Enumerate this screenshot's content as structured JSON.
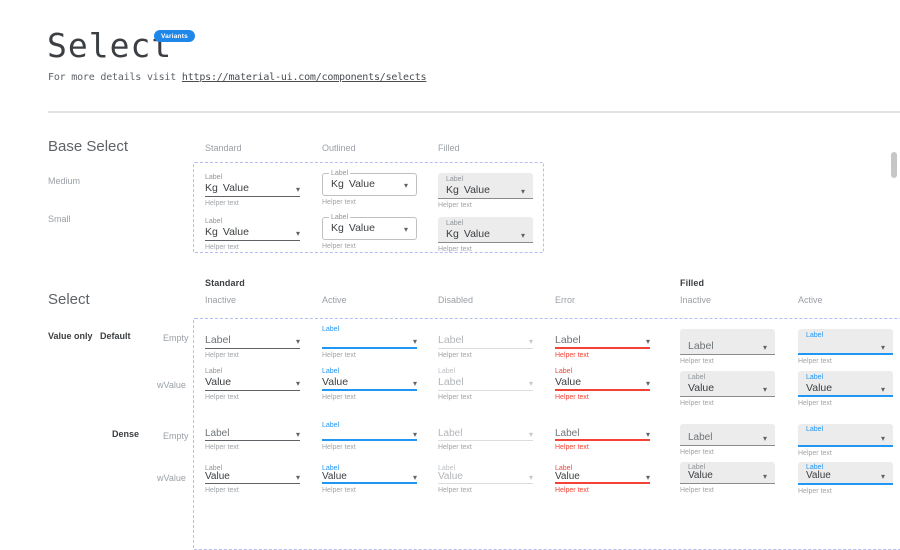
{
  "header": {
    "title": "Select",
    "badge": "Variants",
    "subtitle_prefix": "For more details visit ",
    "link_text": "https://material-ui.com/components/selects"
  },
  "icons": {
    "dropdown": "▾"
  },
  "colors": {
    "primary": "#2196f3",
    "error": "#f44336",
    "badge": "#1f87e8",
    "filled_fill": "#ececec",
    "dashed_border": "#b7bdf2"
  },
  "base_select": {
    "heading": "Base Select",
    "column_headers": [
      "Standard",
      "Outlined",
      "Filled"
    ],
    "row_headers": [
      "Medium",
      "Small"
    ],
    "cell": {
      "label": "Label",
      "adornment": "Kg",
      "value": "Value",
      "helper": "Helper text"
    }
  },
  "select_matrix": {
    "heading": "Select",
    "group_headers": [
      "Standard",
      "Filled"
    ],
    "state_headers": [
      "Inactive",
      "Active",
      "Disabled",
      "Error",
      "Inactive",
      "Active"
    ],
    "row_labels": {
      "group": "Value only",
      "size_default": "Default",
      "size_dense": "Dense",
      "empty": "Empty",
      "with_value": "wValue"
    },
    "helper": "Helper text",
    "columns": [
      {
        "kind": "standard",
        "mode": "inactive"
      },
      {
        "kind": "standard",
        "mode": "active"
      },
      {
        "kind": "standard",
        "mode": "disabled"
      },
      {
        "kind": "standard",
        "mode": "error"
      },
      {
        "kind": "filled",
        "mode": "inactive"
      },
      {
        "kind": "filled",
        "mode": "active"
      }
    ],
    "rows": [
      {
        "name": "default-empty",
        "dense": false,
        "cells": [
          {
            "label": "Label",
            "shrink": false,
            "value": null
          },
          {
            "label": "Label",
            "shrink": true,
            "value": ""
          },
          {
            "label": "Label",
            "shrink": false,
            "value": null
          },
          {
            "label": "Label",
            "shrink": false,
            "value": null
          },
          {
            "label": "Label",
            "shrink": false,
            "value": null
          },
          {
            "label": "Label",
            "shrink": true,
            "value": ""
          }
        ]
      },
      {
        "name": "default-wvalue",
        "dense": false,
        "cells": [
          {
            "label": "Label",
            "shrink": true,
            "value": "Value"
          },
          {
            "label": "Label",
            "shrink": true,
            "value": "Value"
          },
          {
            "label": "Label",
            "shrink": true,
            "value": "Label"
          },
          {
            "label": "Label",
            "shrink": true,
            "value": "Value"
          },
          {
            "label": "Label",
            "shrink": true,
            "value": "Value"
          },
          {
            "label": "Label",
            "shrink": true,
            "value": "Value"
          }
        ]
      },
      {
        "name": "dense-empty",
        "dense": true,
        "cells": [
          {
            "label": "Label",
            "shrink": false,
            "value": null
          },
          {
            "label": "Label",
            "shrink": true,
            "value": ""
          },
          {
            "label": "Label",
            "shrink": false,
            "value": null
          },
          {
            "label": "Label",
            "shrink": false,
            "value": null
          },
          {
            "label": "Label",
            "shrink": false,
            "value": null
          },
          {
            "label": "Label",
            "shrink": true,
            "value": ""
          }
        ]
      },
      {
        "name": "dense-wvalue",
        "dense": true,
        "cells": [
          {
            "label": "Label",
            "shrink": true,
            "value": "Value"
          },
          {
            "label": "Label",
            "shrink": true,
            "value": "Value"
          },
          {
            "label": "Label",
            "shrink": true,
            "value": "Value"
          },
          {
            "label": "Label",
            "shrink": true,
            "value": "Value"
          },
          {
            "label": "Label",
            "shrink": true,
            "value": "Value"
          },
          {
            "label": "Label",
            "shrink": true,
            "value": "Value"
          }
        ]
      }
    ]
  }
}
